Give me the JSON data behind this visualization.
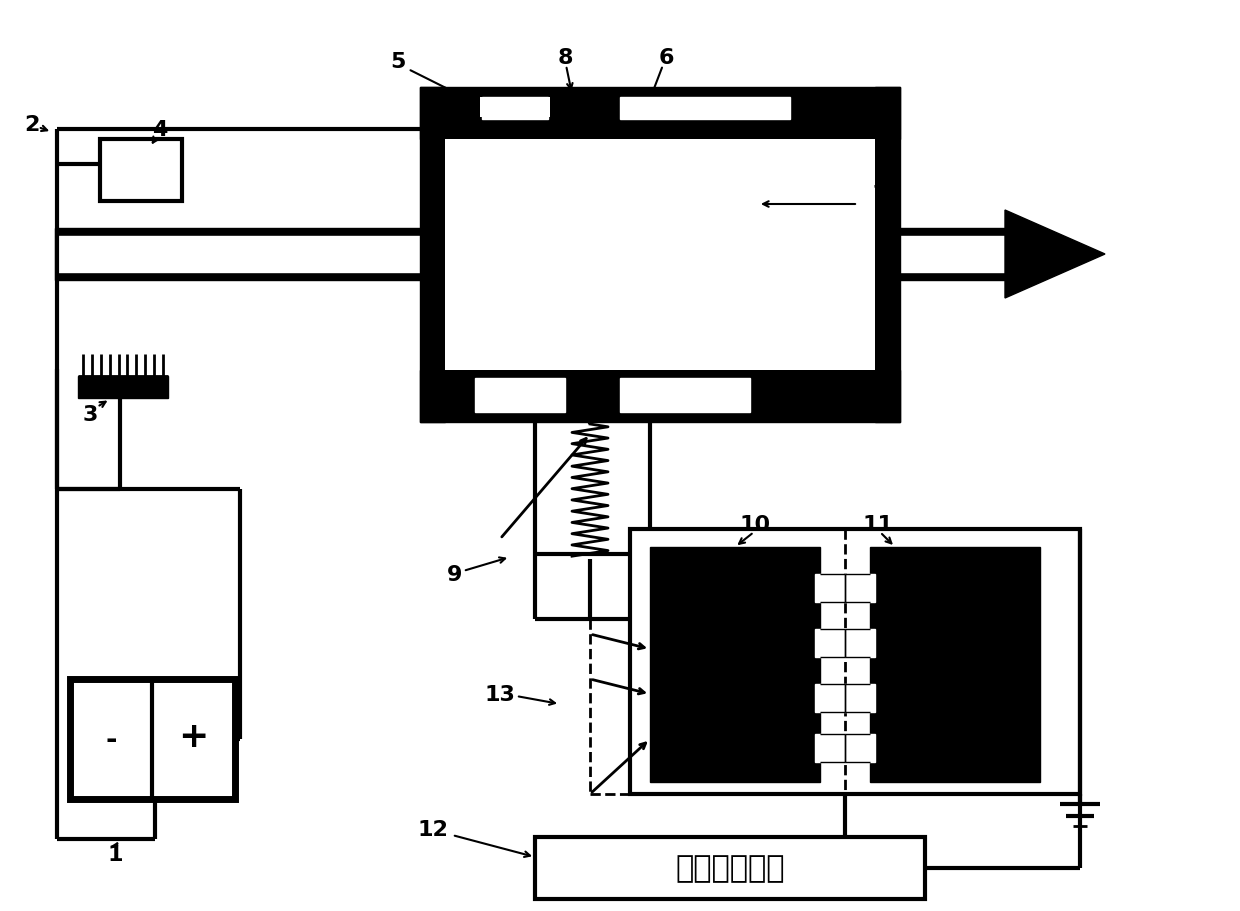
{
  "bg_color": "#ffffff",
  "line_color": "#000000",
  "compute_box_text": "计算处理模块",
  "battery_minus": "-",
  "battery_plus": "+"
}
